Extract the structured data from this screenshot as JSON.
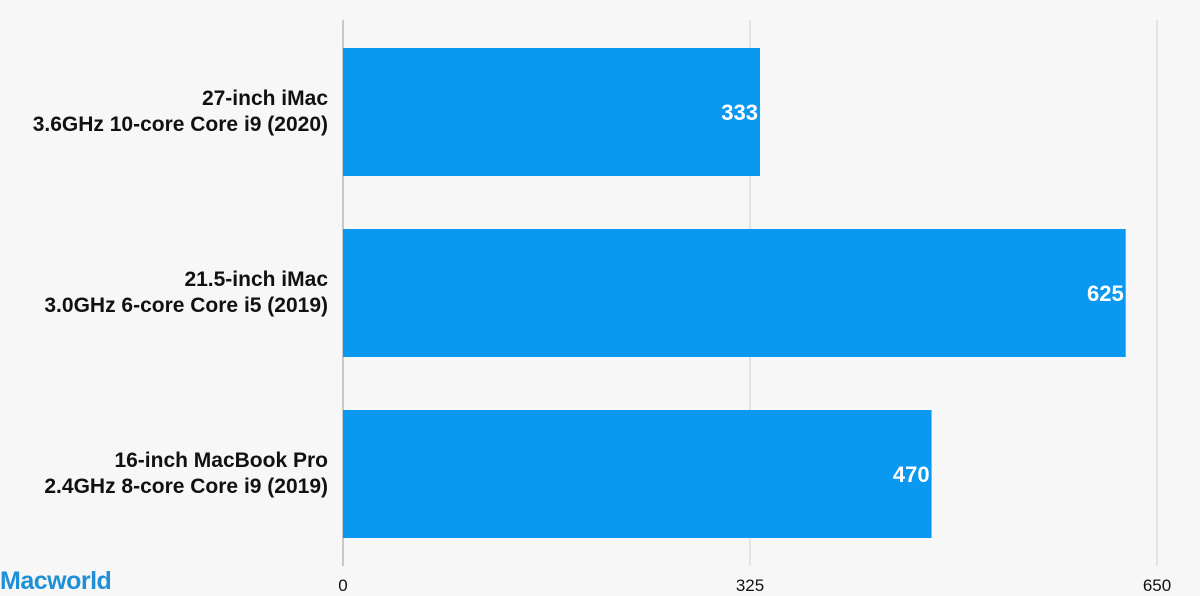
{
  "chart_data": {
    "type": "bar",
    "orientation": "horizontal",
    "categories": [
      [
        "27-inch iMac",
        "3.6GHz 10-core Core i9 (2020)"
      ],
      [
        "21.5-inch iMac",
        "3.0GHz 6-core Core i5 (2019)"
      ],
      [
        "16-inch MacBook Pro",
        "2.4GHz 8-core Core i9 (2019)"
      ]
    ],
    "values": [
      333,
      625,
      470
    ],
    "data_labels": [
      "333",
      "625",
      "470"
    ],
    "xlim": [
      0,
      650
    ],
    "x_ticks": [
      0,
      325,
      650
    ],
    "x_tick_labels": [
      "0",
      "325",
      "650"
    ],
    "grid": true,
    "bar_color": "#0a98f0",
    "label_color": "#ffffff"
  },
  "brand": {
    "name": "Macworld",
    "color": "#1f8fd6"
  }
}
